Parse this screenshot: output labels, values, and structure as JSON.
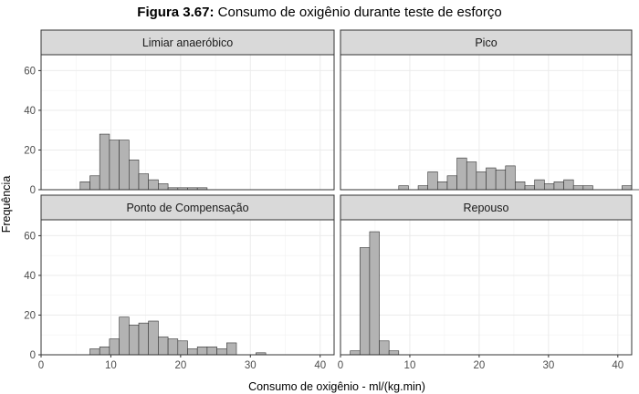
{
  "figure": {
    "title_bold": "Figura 3.67:",
    "title_rest": " Consumo de oxigênio durante teste de esforço",
    "xlabel": "Consumo de oxigênio - ml/(kg.min)",
    "ylabel": "Frequência"
  },
  "chart_data": {
    "type": "bar",
    "subtype": "faceted-histogram",
    "title": "Figura 3.67: Consumo de oxigênio durante teste de esforço",
    "xlabel": "Consumo de oxigênio - ml/(kg.min)",
    "ylabel": "Frequência",
    "xlim": [
      0,
      42
    ],
    "ylim": [
      0,
      68
    ],
    "xticks": [
      0,
      10,
      20,
      30,
      40
    ],
    "yticks": [
      0,
      20,
      40,
      60
    ],
    "bin_start": 1.4,
    "bin_width": 1.4,
    "grid": true,
    "bar_color": "#b3b3b3",
    "bar_edge": "#333333",
    "strip_color": "#d9d9d9",
    "facets": [
      {
        "name": "Limiar anaeróbico",
        "counts": [
          0,
          0,
          0,
          4,
          7,
          28,
          25,
          25,
          15,
          8,
          5,
          3,
          1,
          1,
          1,
          1,
          0,
          0,
          0,
          0,
          0,
          0,
          0,
          0,
          0,
          0,
          0,
          0,
          0
        ]
      },
      {
        "name": "Pico",
        "counts": [
          0,
          0,
          0,
          0,
          0,
          2,
          0,
          2,
          9,
          4,
          7,
          16,
          14,
          9,
          11,
          10,
          12,
          4,
          2,
          5,
          3,
          4,
          5,
          2,
          2,
          0,
          0,
          0,
          2,
          0
        ]
      },
      {
        "name": "Ponto de Compensação",
        "counts": [
          0,
          0,
          0,
          0,
          3,
          4,
          8,
          19,
          15,
          16,
          17,
          9,
          8,
          7,
          3,
          4,
          4,
          3,
          6,
          0,
          0,
          1,
          0,
          0,
          0,
          0,
          0,
          0,
          0
        ]
      },
      {
        "name": "Repouso",
        "counts": [
          2,
          54,
          62,
          7,
          2,
          0,
          0,
          0,
          0,
          0,
          0,
          0,
          0,
          0,
          0,
          0,
          0,
          0,
          0,
          0,
          0,
          0,
          0,
          0,
          0,
          0,
          0,
          0,
          0
        ]
      }
    ]
  }
}
